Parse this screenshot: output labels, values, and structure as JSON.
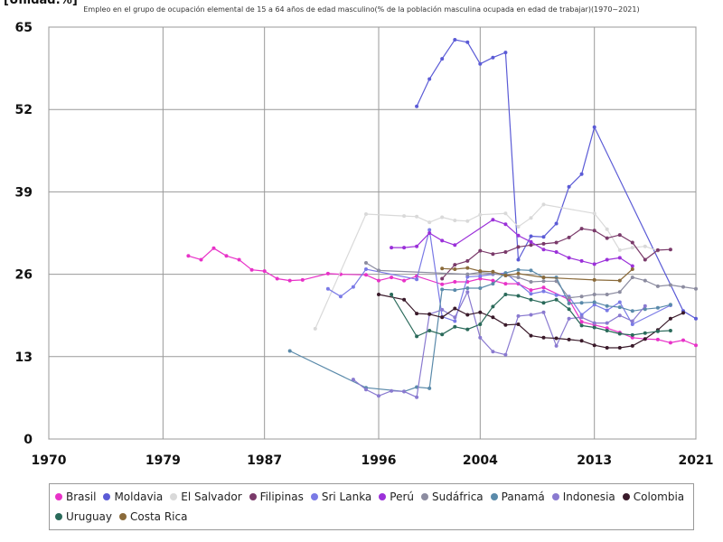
{
  "chart_data": {
    "type": "line",
    "unit_label": "[Unidad:%]",
    "title": "Empleo en el grupo de ocupación elemental de 15 a 64 años de edad masculino(% de la población masculina ocupada en edad de trabajar)(1970~2021)",
    "xlim": [
      1970,
      2021
    ],
    "ylim": [
      0,
      65
    ],
    "x_ticks": [
      "1970",
      "1979",
      "1987",
      "1996",
      "2004",
      "2013",
      "2021"
    ],
    "y_ticks": [
      "0",
      "13",
      "26",
      "39",
      "52",
      "65"
    ],
    "grid": true,
    "legend_position": "bottom",
    "series": [
      {
        "name": "Brasil",
        "color": "#e832c8",
        "points": [
          [
            1981,
            28.9
          ],
          [
            1982,
            28.3
          ],
          [
            1983,
            30.1
          ],
          [
            1984,
            28.9
          ],
          [
            1985,
            28.3
          ],
          [
            1986,
            26.7
          ],
          [
            1987,
            26.5
          ],
          [
            1988,
            25.3
          ],
          [
            1989,
            25.0
          ],
          [
            1990,
            25.1
          ],
          [
            1992,
            26.1
          ],
          [
            1993,
            26.0
          ],
          [
            1995,
            25.9
          ],
          [
            1996,
            25.0
          ],
          [
            1997,
            25.5
          ],
          [
            1998,
            25.0
          ],
          [
            1999,
            25.7
          ],
          [
            2001,
            24.4
          ],
          [
            2002,
            24.8
          ],
          [
            2003,
            24.8
          ],
          [
            2004,
            25.3
          ],
          [
            2005,
            25.0
          ],
          [
            2006,
            24.5
          ],
          [
            2007,
            24.5
          ],
          [
            2008,
            23.5
          ],
          [
            2009,
            23.9
          ],
          [
            2011,
            22.0
          ],
          [
            2012,
            18.5
          ],
          [
            2013,
            18.0
          ],
          [
            2014,
            17.5
          ],
          [
            2015,
            16.8
          ],
          [
            2016,
            16.0
          ],
          [
            2017,
            15.8
          ],
          [
            2018,
            15.7
          ],
          [
            2019,
            15.2
          ],
          [
            2020,
            15.6
          ],
          [
            2021,
            14.8
          ]
        ]
      },
      {
        "name": "Moldavia",
        "color": "#5b5bd6",
        "points": [
          [
            1999,
            52.5
          ],
          [
            2000,
            56.8
          ],
          [
            2001,
            60.0
          ],
          [
            2002,
            63.0
          ],
          [
            2003,
            62.6
          ],
          [
            2004,
            59.2
          ],
          [
            2005,
            60.2
          ],
          [
            2006,
            61.0
          ],
          [
            2007,
            28.3
          ],
          [
            2008,
            32.0
          ],
          [
            2009,
            31.9
          ],
          [
            2010,
            34.0
          ],
          [
            2011,
            39.8
          ],
          [
            2012,
            41.8
          ],
          [
            2013,
            49.2
          ],
          [
            2020,
            20.2
          ],
          [
            2021,
            19.0
          ]
        ]
      },
      {
        "name": "El Salvador",
        "color": "#d9d9d9",
        "points": [
          [
            1991,
            17.4
          ],
          [
            1995,
            35.5
          ],
          [
            1998,
            35.2
          ],
          [
            1999,
            35.1
          ],
          [
            2000,
            34.2
          ],
          [
            2001,
            35.0
          ],
          [
            2002,
            34.5
          ],
          [
            2003,
            34.4
          ],
          [
            2004,
            35.4
          ],
          [
            2006,
            35.6
          ],
          [
            2007,
            33.5
          ],
          [
            2008,
            34.9
          ],
          [
            2009,
            37.0
          ],
          [
            2013,
            35.6
          ],
          [
            2014,
            33.1
          ],
          [
            2015,
            29.8
          ],
          [
            2016,
            30.2
          ],
          [
            2017,
            30.4
          ],
          [
            2018,
            29.7
          ]
        ]
      },
      {
        "name": "Filipinas",
        "color": "#7a3a6a",
        "points": [
          [
            2001,
            25.3
          ],
          [
            2002,
            27.5
          ],
          [
            2003,
            28.1
          ],
          [
            2004,
            29.7
          ],
          [
            2005,
            29.2
          ],
          [
            2006,
            29.5
          ],
          [
            2007,
            30.3
          ],
          [
            2008,
            30.6
          ],
          [
            2009,
            30.8
          ],
          [
            2010,
            31.0
          ],
          [
            2011,
            31.8
          ],
          [
            2012,
            33.2
          ],
          [
            2013,
            32.9
          ],
          [
            2014,
            31.7
          ],
          [
            2015,
            32.2
          ],
          [
            2016,
            31.0
          ],
          [
            2017,
            28.3
          ],
          [
            2018,
            29.8
          ],
          [
            2019,
            29.9
          ]
        ]
      },
      {
        "name": "Sri Lanka",
        "color": "#7a7ae6",
        "points": [
          [
            1992,
            23.7
          ],
          [
            1993,
            22.5
          ],
          [
            1994,
            24.0
          ],
          [
            1995,
            26.8
          ],
          [
            1999,
            25.2
          ],
          [
            2000,
            33.0
          ],
          [
            2001,
            19.3
          ],
          [
            2002,
            18.6
          ],
          [
            2003,
            25.6
          ],
          [
            2004,
            25.7
          ],
          [
            2005,
            26.0
          ],
          [
            2006,
            26.2
          ],
          [
            2008,
            22.9
          ],
          [
            2009,
            23.3
          ],
          [
            2010,
            22.7
          ],
          [
            2011,
            22.5
          ],
          [
            2012,
            19.6
          ],
          [
            2013,
            21.2
          ],
          [
            2014,
            20.3
          ],
          [
            2015,
            21.6
          ],
          [
            2016,
            18.1
          ],
          [
            2019,
            21.1
          ]
        ]
      },
      {
        "name": "Perú",
        "color": "#9b30d9",
        "points": [
          [
            1997,
            30.2
          ],
          [
            1998,
            30.2
          ],
          [
            1999,
            30.4
          ],
          [
            2000,
            32.5
          ],
          [
            2001,
            31.3
          ],
          [
            2002,
            30.6
          ],
          [
            2005,
            34.6
          ],
          [
            2006,
            33.9
          ],
          [
            2007,
            32.1
          ],
          [
            2008,
            31.1
          ],
          [
            2009,
            29.9
          ],
          [
            2010,
            29.5
          ],
          [
            2011,
            28.6
          ],
          [
            2012,
            28.1
          ],
          [
            2013,
            27.6
          ],
          [
            2014,
            28.3
          ],
          [
            2015,
            28.6
          ],
          [
            2016,
            27.3
          ]
        ]
      },
      {
        "name": "Sudáfrica",
        "color": "#8c8ca0",
        "points": [
          [
            1995,
            27.8
          ],
          [
            1996,
            26.6
          ],
          [
            2003,
            26.0
          ],
          [
            2004,
            26.3
          ],
          [
            2005,
            26.1
          ],
          [
            2006,
            25.8
          ],
          [
            2007,
            25.5
          ],
          [
            2008,
            24.8
          ],
          [
            2009,
            24.9
          ],
          [
            2010,
            24.9
          ],
          [
            2011,
            22.3
          ],
          [
            2012,
            22.5
          ],
          [
            2013,
            22.8
          ],
          [
            2014,
            22.8
          ],
          [
            2015,
            23.2
          ],
          [
            2016,
            25.5
          ],
          [
            2017,
            25.0
          ],
          [
            2018,
            24.1
          ],
          [
            2019,
            24.3
          ],
          [
            2020,
            24.0
          ],
          [
            2021,
            23.7
          ]
        ]
      },
      {
        "name": "Panamá",
        "color": "#5a8aaa",
        "points": [
          [
            1989,
            13.9
          ],
          [
            1995,
            8.1
          ],
          [
            1998,
            7.5
          ],
          [
            1999,
            8.2
          ],
          [
            2000,
            8.0
          ],
          [
            2001,
            23.6
          ],
          [
            2002,
            23.5
          ],
          [
            2003,
            23.8
          ],
          [
            2004,
            23.8
          ],
          [
            2005,
            24.5
          ],
          [
            2006,
            26.2
          ],
          [
            2007,
            26.7
          ],
          [
            2008,
            26.6
          ],
          [
            2009,
            25.5
          ],
          [
            2010,
            25.5
          ],
          [
            2011,
            21.4
          ],
          [
            2012,
            21.5
          ],
          [
            2013,
            21.6
          ],
          [
            2014,
            21.0
          ],
          [
            2015,
            20.8
          ],
          [
            2016,
            20.2
          ],
          [
            2017,
            20.5
          ],
          [
            2018,
            20.7
          ],
          [
            2019,
            21.2
          ]
        ]
      },
      {
        "name": "Indonesia",
        "color": "#8a7ad0",
        "points": [
          [
            1994,
            9.4
          ],
          [
            1995,
            7.8
          ],
          [
            1996,
            6.8
          ],
          [
            1997,
            7.6
          ],
          [
            1998,
            7.5
          ],
          [
            1999,
            6.6
          ],
          [
            2000,
            19.7
          ],
          [
            2001,
            20.4
          ],
          [
            2002,
            19.2
          ],
          [
            2003,
            23.2
          ],
          [
            2004,
            16.0
          ],
          [
            2005,
            13.8
          ],
          [
            2006,
            13.3
          ],
          [
            2007,
            19.4
          ],
          [
            2008,
            19.6
          ],
          [
            2009,
            20.0
          ],
          [
            2010,
            14.7
          ],
          [
            2011,
            19.0
          ],
          [
            2012,
            19.2
          ],
          [
            2013,
            18.3
          ],
          [
            2014,
            18.3
          ],
          [
            2015,
            19.5
          ],
          [
            2016,
            18.6
          ],
          [
            2017,
            21.0
          ]
        ]
      },
      {
        "name": "Colombia",
        "color": "#3a1a2a",
        "points": [
          [
            1996,
            22.8
          ],
          [
            1998,
            22.0
          ],
          [
            1999,
            19.8
          ],
          [
            2000,
            19.7
          ],
          [
            2001,
            19.2
          ],
          [
            2002,
            20.6
          ],
          [
            2003,
            19.6
          ],
          [
            2004,
            20.0
          ],
          [
            2005,
            19.2
          ],
          [
            2006,
            18.0
          ],
          [
            2007,
            18.1
          ],
          [
            2008,
            16.3
          ],
          [
            2009,
            16.0
          ],
          [
            2010,
            15.9
          ],
          [
            2011,
            15.7
          ],
          [
            2012,
            15.5
          ],
          [
            2013,
            14.8
          ],
          [
            2014,
            14.4
          ],
          [
            2015,
            14.4
          ],
          [
            2016,
            14.7
          ],
          [
            2017,
            15.8
          ],
          [
            2018,
            17.2
          ],
          [
            2019,
            19.0
          ],
          [
            2020,
            19.9
          ]
        ]
      },
      {
        "name": "Uruguay",
        "color": "#2a6a5a",
        "points": [
          [
            1997,
            22.8
          ],
          [
            1999,
            16.2
          ],
          [
            2000,
            17.1
          ],
          [
            2001,
            16.5
          ],
          [
            2002,
            17.7
          ],
          [
            2003,
            17.3
          ],
          [
            2004,
            18.1
          ],
          [
            2005,
            20.9
          ],
          [
            2006,
            22.8
          ],
          [
            2007,
            22.6
          ],
          [
            2008,
            22.0
          ],
          [
            2009,
            21.5
          ],
          [
            2010,
            22.0
          ],
          [
            2011,
            20.5
          ],
          [
            2012,
            17.9
          ],
          [
            2013,
            17.6
          ],
          [
            2014,
            17.1
          ],
          [
            2015,
            16.6
          ],
          [
            2016,
            16.4
          ],
          [
            2017,
            16.7
          ],
          [
            2018,
            17.0
          ],
          [
            2019,
            17.1
          ]
        ]
      },
      {
        "name": "Costa Rica",
        "color": "#8a6a3a",
        "points": [
          [
            2001,
            26.9
          ],
          [
            2002,
            26.8
          ],
          [
            2003,
            27.0
          ],
          [
            2004,
            26.5
          ],
          [
            2005,
            26.4
          ],
          [
            2006,
            25.8
          ],
          [
            2007,
            26.1
          ],
          [
            2009,
            25.5
          ],
          [
            2013,
            25.1
          ],
          [
            2015,
            25.0
          ],
          [
            2016,
            26.8
          ]
        ]
      }
    ]
  }
}
